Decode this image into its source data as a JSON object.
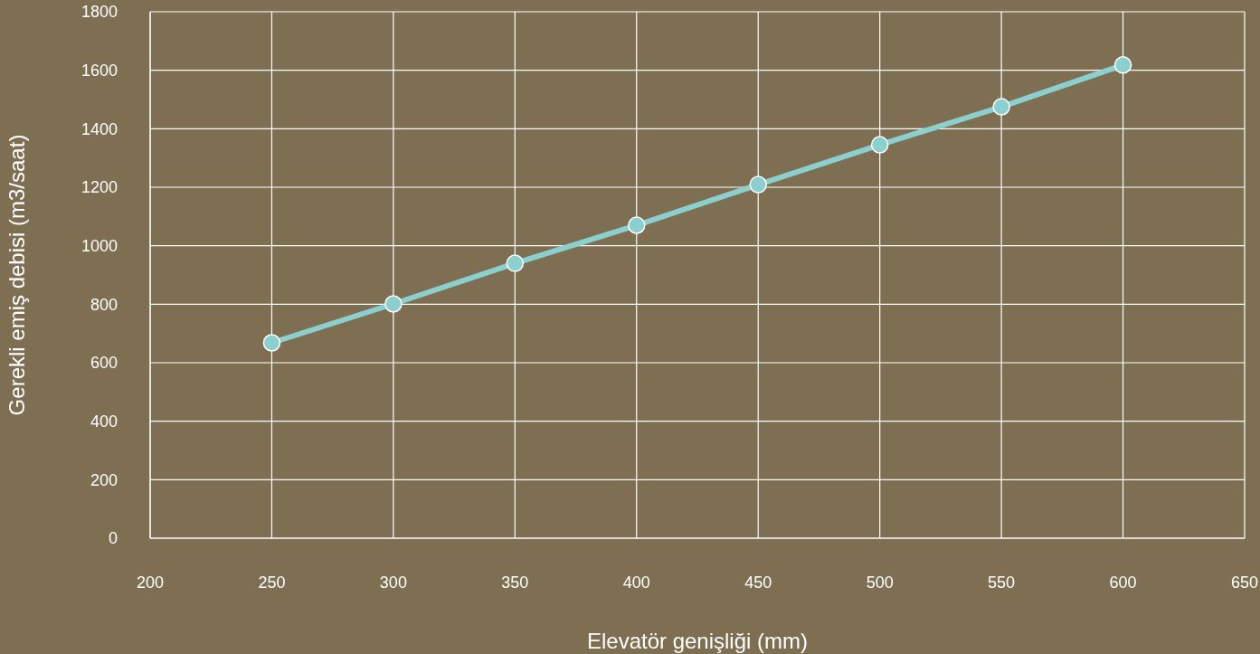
{
  "chart_data": {
    "type": "line",
    "xlabel": "Elevatör genişliği (mm)",
    "ylabel": "Gerekli emiş debisi (m3/saat)",
    "x": [
      250,
      300,
      350,
      400,
      450,
      500,
      550,
      600
    ],
    "series": [
      {
        "color": "#8ccfcf",
        "values": [
          668,
          801,
          940,
          1070,
          1209,
          1345,
          1475,
          1618
        ]
      }
    ],
    "xlim": [
      200,
      650
    ],
    "xticks": [
      200,
      250,
      300,
      350,
      400,
      450,
      500,
      550,
      600,
      650
    ],
    "ylim": [
      0,
      1800
    ],
    "yticks": [
      0,
      200,
      400,
      600,
      800,
      1000,
      1200,
      1400,
      1600,
      1800
    ],
    "grid": true,
    "marker": "circle",
    "line_style": "solid"
  }
}
